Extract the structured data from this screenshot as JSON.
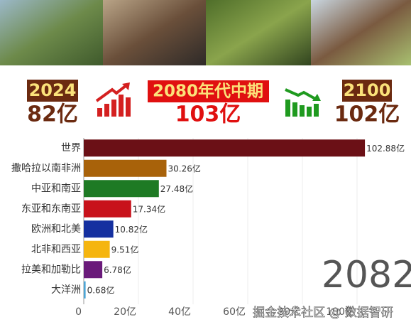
{
  "header": {
    "items": [
      {
        "year": "2024",
        "value": "82亿"
      },
      {
        "year": "2080年代中期",
        "value": "103亿"
      },
      {
        "year": "2100",
        "value": "102亿"
      }
    ]
  },
  "watermark": "掘金技术社区 @ 数据智研",
  "chart_data": {
    "type": "hbar",
    "year_label": "2082",
    "categories": [
      "世界",
      "撒哈拉以南非洲",
      "中亚和南亚",
      "东亚和东南亚",
      "欧洲和北美",
      "北非和西亚",
      "拉美和加勒比",
      "大洋洲"
    ],
    "values": [
      102.88,
      30.26,
      27.48,
      17.34,
      10.82,
      9.51,
      6.78,
      0.68
    ],
    "value_labels": [
      "102.88亿",
      "30.26亿",
      "27.48亿",
      "17.34亿",
      "10.82亿",
      "9.51亿",
      "6.78亿",
      "0.68亿"
    ],
    "colors": [
      "#6b1016",
      "#a8620a",
      "#1e7a24",
      "#c8121b",
      "#1530a0",
      "#f5b50f",
      "#6a1a7a",
      "#4da6d6"
    ],
    "xlim": [
      0,
      120
    ],
    "xticks": [
      0,
      {
        "value": 20,
        "label": "20亿"
      },
      {
        "value": 40,
        "label": "40亿"
      },
      {
        "value": 60,
        "label": "60亿"
      },
      {
        "value": 80,
        "label": "80亿"
      },
      {
        "value": 100,
        "label": "100亿"
      }
    ],
    "grid": true
  }
}
